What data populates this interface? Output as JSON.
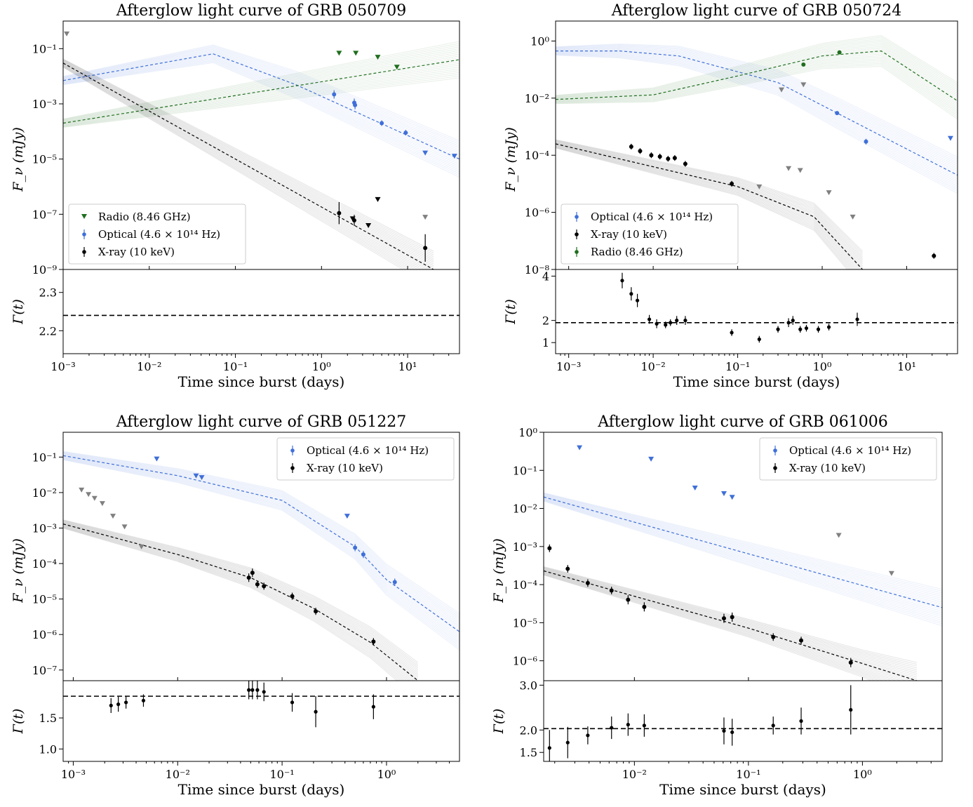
{
  "colors": {
    "optical": "#3f6fd8",
    "xray": "#000000",
    "radio": "#1f6e1f",
    "uplim": "#808080"
  },
  "chart_data": [
    {
      "type": "scatter",
      "title": "Afterglow light curve of GRB 050709",
      "xlabel": "Time since burst (days)",
      "ylabel": "F_ν (mJy)",
      "gamma_label": "Γ(t)",
      "xlim": [
        0.001,
        40
      ],
      "ylim": [
        1e-09,
        1
      ],
      "gamma_ylim": [
        2.14,
        2.36
      ],
      "xticks": [
        "10⁻³",
        "10⁻²",
        "10⁻¹",
        "10⁰",
        "10¹"
      ],
      "yticks": [
        "10⁻⁹",
        "10⁻⁷",
        "10⁻⁵",
        "10⁻³",
        "10⁻¹"
      ],
      "gamma_yticks": [
        "2.2",
        "2.3"
      ],
      "gamma_line": 2.24,
      "legend": [
        "Radio (8.46 GHz)",
        "Optical (4.6 × 10¹⁴ Hz)",
        "X-ray (10 keV)"
      ],
      "legend_position": "lower-left",
      "models": [
        {
          "color": "optical",
          "points": [
            [
              0.001,
              0.007
            ],
            [
              0.055,
              0.065
            ],
            [
              0.5,
              0.005
            ],
            [
              40,
              1e-05
            ]
          ]
        },
        {
          "color": "radio",
          "points": [
            [
              0.001,
              0.0002
            ],
            [
              40,
              0.04
            ]
          ]
        },
        {
          "color": "xray",
          "points": [
            [
              0.001,
              0.03
            ],
            [
              20,
              1e-09
            ]
          ]
        }
      ],
      "upper_limits": [
        {
          "color": "uplim",
          "x": 0.0011,
          "y": 0.35
        },
        {
          "color": "radio",
          "x": 1.6,
          "y": 0.07
        },
        {
          "color": "radio",
          "x": 2.5,
          "y": 0.07
        },
        {
          "color": "radio",
          "x": 4.5,
          "y": 0.05
        },
        {
          "color": "radio",
          "x": 7.5,
          "y": 0.022
        },
        {
          "color": "optical",
          "x": 16,
          "y": 1.7e-05
        },
        {
          "color": "optical",
          "x": 35,
          "y": 1.3e-05
        },
        {
          "color": "xray",
          "x": 2.3,
          "y": 7e-08
        },
        {
          "color": "xray",
          "x": 3.5,
          "y": 4e-08
        },
        {
          "color": "xray",
          "x": 4.5,
          "y": 3.5e-07
        },
        {
          "color": "uplim",
          "x": 16,
          "y": 8e-08
        }
      ],
      "detections": [
        {
          "color": "optical",
          "x": 1.4,
          "y": 0.0022,
          "err": 0.15
        },
        {
          "color": "optical",
          "x": 2.4,
          "y": 0.0011,
          "err": 0.15
        },
        {
          "color": "optical",
          "x": 2.45,
          "y": 0.0009,
          "err": 0.15
        },
        {
          "color": "optical",
          "x": 5.0,
          "y": 0.0002,
          "err": 0.1
        },
        {
          "color": "optical",
          "x": 9.5,
          "y": 9e-05,
          "err": 0.1
        },
        {
          "color": "xray",
          "x": 1.6,
          "y": 1.1e-07,
          "err": 0.4
        },
        {
          "color": "xray",
          "x": 2.4,
          "y": 6e-08,
          "err": 0.2
        },
        {
          "color": "xray",
          "x": 16,
          "y": 6e-09,
          "err": 0.5
        }
      ],
      "gamma_points": []
    },
    {
      "type": "scatter",
      "title": "Afterglow light curve of GRB 050724",
      "xlabel": "Time since burst (days)",
      "ylabel": "F_ν (mJy)",
      "gamma_label": "Γ(t)",
      "xlim": [
        0.0007,
        40
      ],
      "ylim": [
        1e-08,
        5
      ],
      "gamma_ylim": [
        0.5,
        4.3
      ],
      "xticks": [
        "10⁻³",
        "10⁻²",
        "10⁻¹",
        "10⁰",
        "10¹"
      ],
      "yticks": [
        "10⁻⁸",
        "10⁻⁶",
        "10⁻⁴",
        "10⁻²",
        "10⁰"
      ],
      "gamma_yticks": [
        "1",
        "2",
        "4"
      ],
      "gamma_line": 1.9,
      "legend": [
        "Optical (4.6 × 10¹⁴ Hz)",
        "X-ray (10 keV)",
        "Radio (8.46 GHz)"
      ],
      "legend_position": "lower-left",
      "models": [
        {
          "color": "optical",
          "points": [
            [
              0.0007,
              0.45
            ],
            [
              0.004,
              0.45
            ],
            [
              0.02,
              0.3
            ],
            [
              0.3,
              0.035
            ],
            [
              1.5,
              0.003
            ],
            [
              40,
              2e-05
            ]
          ]
        },
        {
          "color": "radio",
          "points": [
            [
              0.0007,
              0.009
            ],
            [
              0.01,
              0.013
            ],
            [
              0.1,
              0.06
            ],
            [
              1.0,
              0.3
            ],
            [
              5.0,
              0.45
            ],
            [
              40,
              0.008
            ]
          ]
        },
        {
          "color": "xray",
          "points": [
            [
              0.0007,
              0.00025
            ],
            [
              0.1,
              8e-06
            ],
            [
              0.8,
              7e-07
            ],
            [
              3.0,
              1e-08
            ]
          ]
        }
      ],
      "upper_limits": [
        {
          "color": "uplim",
          "x": 0.18,
          "y": 8e-06
        },
        {
          "color": "uplim",
          "x": 0.33,
          "y": 0.02
        },
        {
          "color": "uplim",
          "x": 0.6,
          "y": 0.03
        },
        {
          "color": "uplim",
          "x": 0.4,
          "y": 3.5e-05
        },
        {
          "color": "uplim",
          "x": 0.55,
          "y": 3e-05
        },
        {
          "color": "uplim",
          "x": 1.2,
          "y": 5e-06
        },
        {
          "color": "uplim",
          "x": 2.3,
          "y": 7e-07
        },
        {
          "color": "optical",
          "x": 33,
          "y": 0.0004
        }
      ],
      "detections": [
        {
          "color": "xray",
          "x": 0.0055,
          "y": 0.0002,
          "err": 0.1
        },
        {
          "color": "xray",
          "x": 0.007,
          "y": 0.00014,
          "err": 0.1
        },
        {
          "color": "xray",
          "x": 0.0095,
          "y": 0.0001,
          "err": 0.1
        },
        {
          "color": "xray",
          "x": 0.012,
          "y": 9e-05,
          "err": 0.1
        },
        {
          "color": "xray",
          "x": 0.015,
          "y": 7.5e-05,
          "err": 0.1
        },
        {
          "color": "xray",
          "x": 0.018,
          "y": 8e-05,
          "err": 0.1
        },
        {
          "color": "xray",
          "x": 0.024,
          "y": 5e-05,
          "err": 0.1
        },
        {
          "color": "xray",
          "x": 0.085,
          "y": 1e-05,
          "err": 0.1
        },
        {
          "color": "xray",
          "x": 21,
          "y": 3e-08,
          "err": 0.1
        },
        {
          "color": "radio",
          "x": 0.6,
          "y": 0.15,
          "err": 0.05
        },
        {
          "color": "radio",
          "x": 1.6,
          "y": 0.4,
          "err": 0.05
        },
        {
          "color": "optical",
          "x": 1.5,
          "y": 0.003,
          "err": 0.05
        },
        {
          "color": "optical",
          "x": 3.3,
          "y": 0.0003,
          "err": 0.1
        }
      ],
      "gamma_points": [
        {
          "x": 0.0043,
          "y": 3.8,
          "err": 0.35
        },
        {
          "x": 0.0055,
          "y": 3.2,
          "err": 0.3
        },
        {
          "x": 0.0065,
          "y": 2.9,
          "err": 0.3
        },
        {
          "x": 0.009,
          "y": 2.05,
          "err": 0.2
        },
        {
          "x": 0.011,
          "y": 1.85,
          "err": 0.2
        },
        {
          "x": 0.014,
          "y": 1.8,
          "err": 0.15
        },
        {
          "x": 0.016,
          "y": 1.9,
          "err": 0.15
        },
        {
          "x": 0.019,
          "y": 2.0,
          "err": 0.2
        },
        {
          "x": 0.024,
          "y": 2.0,
          "err": 0.2
        },
        {
          "x": 0.085,
          "y": 1.45,
          "err": 0.15
        },
        {
          "x": 0.18,
          "y": 1.15,
          "err": 0.15
        },
        {
          "x": 0.3,
          "y": 1.6,
          "err": 0.15
        },
        {
          "x": 0.4,
          "y": 1.9,
          "err": 0.2
        },
        {
          "x": 0.45,
          "y": 2.0,
          "err": 0.2
        },
        {
          "x": 0.55,
          "y": 1.6,
          "err": 0.15
        },
        {
          "x": 0.65,
          "y": 1.65,
          "err": 0.15
        },
        {
          "x": 0.9,
          "y": 1.6,
          "err": 0.15
        },
        {
          "x": 1.2,
          "y": 1.7,
          "err": 0.15
        },
        {
          "x": 2.6,
          "y": 2.05,
          "err": 0.3
        }
      ]
    },
    {
      "type": "scatter",
      "title": "Afterglow light curve of GRB 051227",
      "xlabel": "Time since burst (days)",
      "ylabel": "F_ν (mJy)",
      "gamma_label": "Γ(t)",
      "xlim": [
        0.0008,
        5
      ],
      "ylim": [
        5e-08,
        0.5
      ],
      "gamma_ylim": [
        0.8,
        2.1
      ],
      "xticks": [
        "10⁻³",
        "10⁻²",
        "10⁻¹",
        "10⁰"
      ],
      "yticks": [
        "10⁻⁷",
        "10⁻⁶",
        "10⁻⁵",
        "10⁻⁴",
        "10⁻³",
        "10⁻²",
        "10⁻¹"
      ],
      "gamma_yticks": [
        "1.0",
        "1.5"
      ],
      "gamma_line": 1.85,
      "legend": [
        "Optical (4.6 × 10¹⁴ Hz)",
        "X-ray (10 keV)"
      ],
      "legend_position": "upper-right",
      "models": [
        {
          "color": "optical",
          "points": [
            [
              0.0008,
              0.11
            ],
            [
              0.01,
              0.03
            ],
            [
              0.1,
              0.006
            ],
            [
              0.5,
              0.0003
            ],
            [
              1.0,
              3.5e-05
            ],
            [
              5,
              1.2e-06
            ]
          ]
        },
        {
          "color": "xray",
          "points": [
            [
              0.0008,
              0.0013
            ],
            [
              0.01,
              0.00018
            ],
            [
              0.05,
              4e-05
            ],
            [
              0.2,
              5.5e-06
            ],
            [
              0.7,
              6e-07
            ],
            [
              2.0,
              5e-08
            ]
          ]
        }
      ],
      "upper_limits": [
        {
          "color": "optical",
          "x": 0.0063,
          "y": 0.09
        },
        {
          "color": "optical",
          "x": 0.015,
          "y": 0.03
        },
        {
          "color": "optical",
          "x": 0.017,
          "y": 0.027
        },
        {
          "color": "optical",
          "x": 0.42,
          "y": 0.0022
        },
        {
          "color": "uplim",
          "x": 0.0012,
          "y": 0.012
        },
        {
          "color": "uplim",
          "x": 0.0014,
          "y": 0.009
        },
        {
          "color": "uplim",
          "x": 0.0016,
          "y": 0.007
        },
        {
          "color": "uplim",
          "x": 0.0019,
          "y": 0.005
        },
        {
          "color": "uplim",
          "x": 0.0024,
          "y": 0.0022
        },
        {
          "color": "uplim",
          "x": 0.0031,
          "y": 0.0011
        },
        {
          "color": "uplim",
          "x": 0.0045,
          "y": 0.0003
        }
      ],
      "detections": [
        {
          "color": "optical",
          "x": 0.5,
          "y": 0.00028,
          "err": 0.1
        },
        {
          "color": "optical",
          "x": 0.6,
          "y": 0.00018,
          "err": 0.1
        },
        {
          "color": "optical",
          "x": 1.2,
          "y": 3e-05,
          "err": 0.1
        },
        {
          "color": "xray",
          "x": 0.048,
          "y": 4e-05,
          "err": 0.12
        },
        {
          "color": "xray",
          "x": 0.052,
          "y": 5.5e-05,
          "err": 0.12
        },
        {
          "color": "xray",
          "x": 0.058,
          "y": 2.6e-05,
          "err": 0.1
        },
        {
          "color": "xray",
          "x": 0.067,
          "y": 2.3e-05,
          "err": 0.1
        },
        {
          "color": "xray",
          "x": 0.125,
          "y": 1.2e-05,
          "err": 0.1
        },
        {
          "color": "xray",
          "x": 0.21,
          "y": 4.5e-06,
          "err": 0.1
        },
        {
          "color": "xray",
          "x": 0.75,
          "y": 6.3e-07,
          "err": 0.1
        }
      ],
      "gamma_points": [
        {
          "x": 0.0023,
          "y": 1.7,
          "err": 0.12
        },
        {
          "x": 0.0027,
          "y": 1.72,
          "err": 0.12
        },
        {
          "x": 0.0032,
          "y": 1.75,
          "err": 0.1
        },
        {
          "x": 0.0047,
          "y": 1.78,
          "err": 0.1
        },
        {
          "x": 0.048,
          "y": 1.95,
          "err": 0.15
        },
        {
          "x": 0.052,
          "y": 1.95,
          "err": 0.15
        },
        {
          "x": 0.058,
          "y": 1.95,
          "err": 0.15
        },
        {
          "x": 0.067,
          "y": 1.92,
          "err": 0.15
        },
        {
          "x": 0.125,
          "y": 1.75,
          "err": 0.15
        },
        {
          "x": 0.21,
          "y": 1.6,
          "err": 0.25
        },
        {
          "x": 0.75,
          "y": 1.68,
          "err": 0.2
        }
      ]
    },
    {
      "type": "scatter",
      "title": "Afterglow light curve of GRB 061006",
      "xlabel": "Time since burst (days)",
      "ylabel": "F_ν (mJy)",
      "gamma_label": "Γ(t)",
      "xlim": [
        0.0016,
        5
      ],
      "ylim": [
        3e-07,
        1
      ],
      "gamma_ylim": [
        1.3,
        3.1
      ],
      "xticks": [
        "10⁻²",
        "10⁻¹",
        "10⁰"
      ],
      "yticks": [
        "10⁻⁶",
        "10⁻⁵",
        "10⁻⁴",
        "10⁻³",
        "10⁻²",
        "10⁻¹",
        "10⁰"
      ],
      "gamma_yticks": [
        "1.5",
        "2.0",
        "3.0"
      ],
      "gamma_line": 2.03,
      "legend": [
        "Optical (4.6 × 10¹⁴ Hz)",
        "X-ray (10 keV)"
      ],
      "legend_position": "upper-right",
      "models": [
        {
          "color": "optical",
          "points": [
            [
              0.0016,
              0.02
            ],
            [
              5,
              2.5e-05
            ]
          ]
        },
        {
          "color": "xray",
          "points": [
            [
              0.0016,
              0.00023
            ],
            [
              0.1,
              7.2e-06
            ],
            [
              1.0,
              8.5e-07
            ],
            [
              3.0,
              3e-07
            ]
          ]
        }
      ],
      "upper_limits": [
        {
          "color": "optical",
          "x": 0.0033,
          "y": 0.4
        },
        {
          "color": "optical",
          "x": 0.014,
          "y": 0.2
        },
        {
          "color": "optical",
          "x": 0.034,
          "y": 0.035
        },
        {
          "color": "optical",
          "x": 0.061,
          "y": 0.025
        },
        {
          "color": "optical",
          "x": 0.072,
          "y": 0.02
        },
        {
          "color": "uplim",
          "x": 0.62,
          "y": 0.002
        },
        {
          "color": "uplim",
          "x": 1.8,
          "y": 0.0002
        }
      ],
      "detections": [
        {
          "color": "xray",
          "x": 0.0018,
          "y": 0.0009,
          "err": 0.1
        },
        {
          "color": "xray",
          "x": 0.0026,
          "y": 0.00026,
          "err": 0.1
        },
        {
          "color": "xray",
          "x": 0.0039,
          "y": 0.00011,
          "err": 0.1
        },
        {
          "color": "xray",
          "x": 0.0063,
          "y": 7e-05,
          "err": 0.1
        },
        {
          "color": "xray",
          "x": 0.0088,
          "y": 4e-05,
          "err": 0.12
        },
        {
          "color": "xray",
          "x": 0.0122,
          "y": 2.6e-05,
          "err": 0.12
        },
        {
          "color": "xray",
          "x": 0.061,
          "y": 1.3e-05,
          "err": 0.12
        },
        {
          "color": "xray",
          "x": 0.072,
          "y": 1.4e-05,
          "err": 0.12
        },
        {
          "color": "xray",
          "x": 0.165,
          "y": 4.2e-06,
          "err": 0.1
        },
        {
          "color": "xray",
          "x": 0.29,
          "y": 3.4e-06,
          "err": 0.1
        },
        {
          "color": "xray",
          "x": 0.79,
          "y": 9e-07,
          "err": 0.12
        }
      ],
      "gamma_points": [
        {
          "x": 0.0018,
          "y": 1.6,
          "err": 0.4
        },
        {
          "x": 0.0026,
          "y": 1.72,
          "err": 0.35
        },
        {
          "x": 0.0039,
          "y": 1.88,
          "err": 0.2
        },
        {
          "x": 0.0063,
          "y": 2.05,
          "err": 0.25
        },
        {
          "x": 0.0088,
          "y": 2.12,
          "err": 0.25
        },
        {
          "x": 0.0122,
          "y": 2.1,
          "err": 0.25
        },
        {
          "x": 0.061,
          "y": 1.98,
          "err": 0.3
        },
        {
          "x": 0.072,
          "y": 1.95,
          "err": 0.3
        },
        {
          "x": 0.165,
          "y": 2.1,
          "err": 0.2
        },
        {
          "x": 0.29,
          "y": 2.2,
          "err": 0.3
        },
        {
          "x": 0.79,
          "y": 2.45,
          "err": 0.55
        }
      ]
    }
  ]
}
